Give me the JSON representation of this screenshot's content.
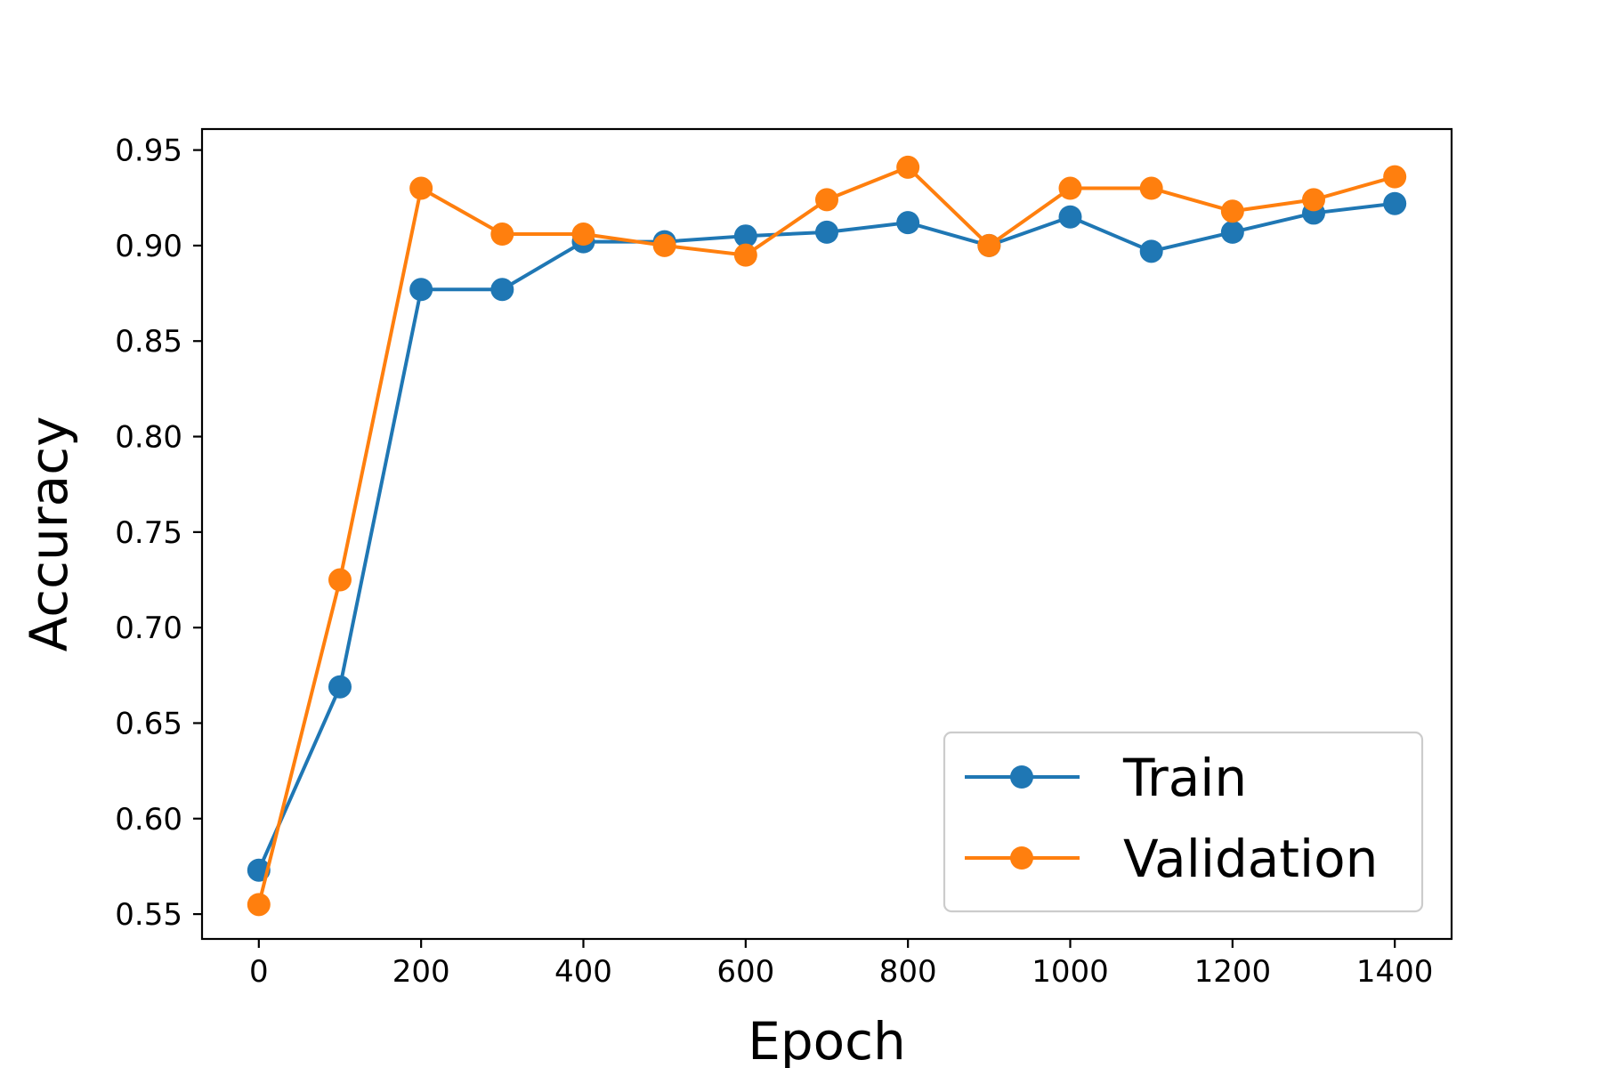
{
  "chart_data": {
    "type": "line",
    "title": "",
    "xlabel": "Epoch",
    "ylabel": "Accuracy",
    "xlim": [
      -70,
      1470
    ],
    "ylim": [
      0.537,
      0.961
    ],
    "x_ticks": [
      0,
      200,
      400,
      600,
      800,
      1000,
      1200,
      1400
    ],
    "y_ticks": [
      0.55,
      0.6,
      0.65,
      0.7,
      0.75,
      0.8,
      0.85,
      0.9,
      0.95
    ],
    "x_tick_labels": [
      "0",
      "200",
      "400",
      "600",
      "800",
      "1000",
      "1200",
      "1400"
    ],
    "y_tick_labels": [
      "0.55",
      "0.60",
      "0.65",
      "0.70",
      "0.75",
      "0.80",
      "0.85",
      "0.90",
      "0.95"
    ],
    "grid": false,
    "legend_position": "lower-right",
    "x": [
      0,
      100,
      200,
      300,
      400,
      500,
      600,
      700,
      800,
      900,
      1000,
      1100,
      1200,
      1300,
      1400
    ],
    "series": [
      {
        "name": "Train",
        "color": "#1f77b4",
        "marker": "circle",
        "values": [
          0.573,
          0.669,
          0.877,
          0.877,
          0.902,
          0.902,
          0.905,
          0.907,
          0.912,
          0.9,
          0.915,
          0.897,
          0.907,
          0.917,
          0.922
        ]
      },
      {
        "name": "Validation",
        "color": "#ff7f0e",
        "marker": "circle",
        "values": [
          0.555,
          0.725,
          0.93,
          0.906,
          0.906,
          0.9,
          0.895,
          0.924,
          0.941,
          0.9,
          0.93,
          0.93,
          0.918,
          0.924,
          0.936
        ]
      }
    ]
  }
}
